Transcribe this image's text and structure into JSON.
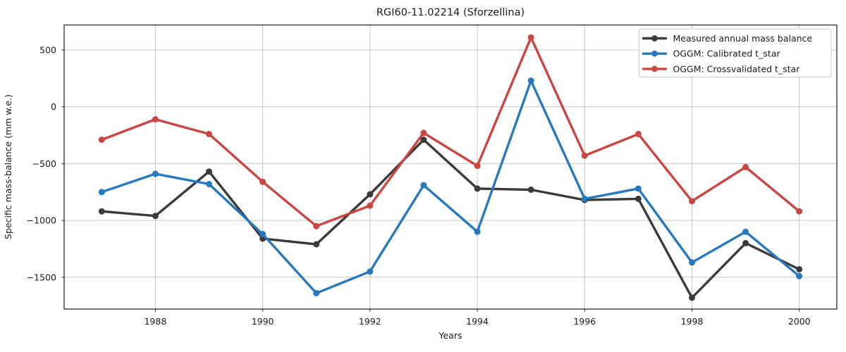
{
  "chart_data": {
    "type": "line",
    "title": "RGI60-11.02214 (Sforzellina)",
    "xlabel": "Years",
    "ylabel": "Specific mass-balance (mm w.e.)",
    "x": [
      1987,
      1988,
      1989,
      1990,
      1991,
      1992,
      1993,
      1994,
      1995,
      1996,
      1997,
      1998,
      1999,
      2000
    ],
    "series": [
      {
        "name": "Measured annual mass balance",
        "color": "#3b3b3b",
        "values": [
          -920,
          -960,
          -570,
          -1160,
          -1210,
          -770,
          -290,
          -720,
          -730,
          -820,
          -810,
          -1680,
          -1200,
          -1430
        ]
      },
      {
        "name": "OGGM: Calibrated t_star",
        "color": "#2878be",
        "values": [
          -750,
          -590,
          -680,
          -1120,
          -1640,
          -1450,
          -690,
          -1100,
          230,
          -810,
          -720,
          -1370,
          -1100,
          -1490
        ]
      },
      {
        "name": "OGGM: Crossvalidated t_star",
        "color": "#ca4643",
        "values": [
          -290,
          -110,
          -240,
          -660,
          -1050,
          -870,
          -230,
          -520,
          610,
          -430,
          -240,
          -830,
          -530,
          -920
        ]
      }
    ],
    "xticks": [
      1988,
      1990,
      1992,
      1994,
      1996,
      1998,
      2000
    ],
    "yticks": [
      500,
      0,
      -500,
      -1000,
      -1500
    ],
    "xlim": [
      1986.3,
      2000.7
    ],
    "ylim": [
      -1780,
      720
    ],
    "grid": true,
    "legend_position": "upper right",
    "grid_color": "#c6c6c6",
    "axis_color": "#2a2a2a",
    "text_color": "#1a1a1a",
    "background_color": "#ffffff"
  }
}
